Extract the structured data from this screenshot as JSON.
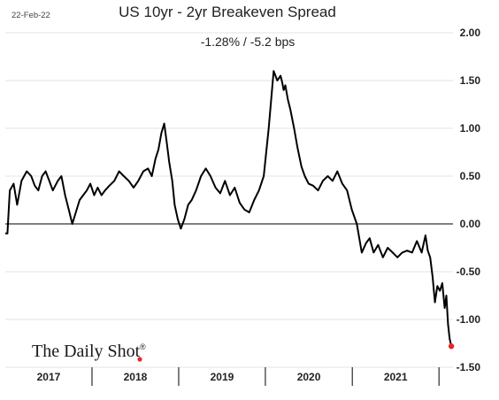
{
  "header": {
    "date": "22-Feb-22",
    "title": "US 10yr - 2yr Breakeven Spread",
    "subtitle": "-1.28%  /  -5.2 bps"
  },
  "brand": {
    "text": "The Daily Shot",
    "mark": "®",
    "dot_color": "#e8262a"
  },
  "chart_data": {
    "type": "line",
    "title": "US 10yr - 2yr Breakeven Spread",
    "subtitle": "-1.28%  /  -5.2 bps",
    "ylim": [
      -1.5,
      2.0
    ],
    "yticks": [
      2.0,
      1.5,
      1.0,
      0.5,
      0.0,
      -0.5,
      -1.0,
      -1.5
    ],
    "ytick_labels": [
      "2.00",
      "1.50",
      "1.00",
      "0.50",
      "0.00",
      "-0.50",
      "-1.00",
      "-1.50"
    ],
    "xlim": [
      "2017-01-01",
      "2022-03-01"
    ],
    "xtick_labels": [
      "2017",
      "2018",
      "2019",
      "2020",
      "2021"
    ],
    "grid": true,
    "line_color": "#000000",
    "end_marker_color": "#e8262a",
    "series": [
      {
        "x": [
          "2017-01-01",
          "2017-01-10",
          "2017-01-20",
          "2017-02-05",
          "2017-02-20",
          "2017-03-10",
          "2017-04-01",
          "2017-04-20",
          "2017-05-05",
          "2017-05-20",
          "2017-06-05",
          "2017-06-20",
          "2017-07-05",
          "2017-07-20",
          "2017-08-10",
          "2017-08-25",
          "2017-09-10",
          "2017-09-25",
          "2017-10-10",
          "2017-10-25",
          "2017-11-10",
          "2017-11-25",
          "2017-12-10",
          "2017-12-25",
          "2018-01-10",
          "2018-01-25",
          "2018-02-10",
          "2018-02-25",
          "2018-03-15",
          "2018-04-05",
          "2018-04-25",
          "2018-05-15",
          "2018-06-05",
          "2018-06-25",
          "2018-07-15",
          "2018-08-05",
          "2018-08-25",
          "2018-09-10",
          "2018-09-25",
          "2018-10-08",
          "2018-10-20",
          "2018-11-01",
          "2018-11-12",
          "2018-11-22",
          "2018-12-05",
          "2018-12-15",
          "2018-12-28",
          "2019-01-10",
          "2019-01-25",
          "2019-02-10",
          "2019-02-25",
          "2019-03-15",
          "2019-04-05",
          "2019-04-25",
          "2019-05-15",
          "2019-06-05",
          "2019-06-25",
          "2019-07-15",
          "2019-08-05",
          "2019-08-25",
          "2019-09-15",
          "2019-10-05",
          "2019-10-25",
          "2019-11-15",
          "2019-12-05",
          "2019-12-25",
          "2020-01-15",
          "2020-02-05",
          "2020-02-20",
          "2020-03-05",
          "2020-03-12",
          "2020-03-18",
          "2020-03-25",
          "2020-04-05",
          "2020-04-15",
          "2020-05-01",
          "2020-05-15",
          "2020-06-01",
          "2020-06-15",
          "2020-07-01",
          "2020-07-20",
          "2020-08-10",
          "2020-08-30",
          "2020-09-20",
          "2020-10-10",
          "2020-10-30",
          "2020-11-20",
          "2020-12-10",
          "2020-12-30",
          "2021-01-20",
          "2021-02-10",
          "2021-02-28",
          "2021-03-15",
          "2021-04-01",
          "2021-04-20",
          "2021-05-10",
          "2021-05-30",
          "2021-06-20",
          "2021-07-10",
          "2021-07-30",
          "2021-08-20",
          "2021-09-10",
          "2021-09-30",
          "2021-10-20",
          "2021-11-05",
          "2021-11-15",
          "2021-11-25",
          "2021-12-05",
          "2021-12-15",
          "2021-12-25",
          "2022-01-05",
          "2022-01-15",
          "2022-01-25",
          "2022-02-01",
          "2022-02-08",
          "2022-02-15",
          "2022-02-22"
        ],
        "values": [
          -0.1,
          -0.1,
          0.35,
          0.42,
          0.2,
          0.45,
          0.55,
          0.5,
          0.4,
          0.35,
          0.5,
          0.55,
          0.45,
          0.35,
          0.45,
          0.5,
          0.3,
          0.15,
          0.0,
          0.12,
          0.25,
          0.3,
          0.35,
          0.42,
          0.3,
          0.38,
          0.3,
          0.35,
          0.4,
          0.45,
          0.55,
          0.5,
          0.45,
          0.38,
          0.45,
          0.55,
          0.58,
          0.5,
          0.68,
          0.78,
          0.95,
          1.05,
          0.85,
          0.65,
          0.45,
          0.2,
          0.05,
          -0.05,
          0.05,
          0.2,
          0.25,
          0.35,
          0.5,
          0.58,
          0.5,
          0.38,
          0.32,
          0.45,
          0.3,
          0.38,
          0.22,
          0.15,
          0.12,
          0.25,
          0.35,
          0.5,
          1.0,
          1.6,
          1.5,
          1.55,
          1.48,
          1.4,
          1.45,
          1.3,
          1.2,
          1.0,
          0.8,
          0.6,
          0.5,
          0.42,
          0.4,
          0.35,
          0.45,
          0.5,
          0.45,
          0.55,
          0.42,
          0.35,
          0.15,
          0.0,
          -0.3,
          -0.2,
          -0.15,
          -0.3,
          -0.22,
          -0.35,
          -0.25,
          -0.3,
          -0.35,
          -0.3,
          -0.28,
          -0.3,
          -0.18,
          -0.3,
          -0.12,
          -0.28,
          -0.35,
          -0.55,
          -0.82,
          -0.65,
          -0.7,
          -0.62,
          -0.88,
          -0.75,
          -1.05,
          -1.2,
          -1.28
        ]
      }
    ]
  }
}
